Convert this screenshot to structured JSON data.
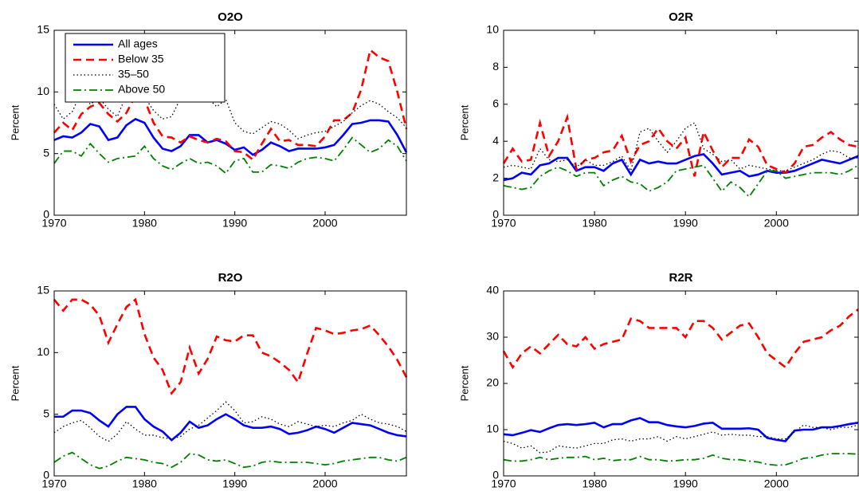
{
  "chart_data": [
    {
      "type": "line",
      "title": "O2O",
      "ylabel": "Percent",
      "legend": "upper left",
      "x": [
        1970,
        1971,
        1972,
        1973,
        1974,
        1975,
        1976,
        1977,
        1978,
        1979,
        1980,
        1981,
        1982,
        1983,
        1984,
        1985,
        1986,
        1987,
        1988,
        1989,
        1990,
        1991,
        1992,
        1993,
        1994,
        1995,
        1996,
        1997,
        1998,
        1999,
        2000,
        2001,
        2002,
        2003,
        2004,
        2005,
        2006,
        2007,
        2008,
        2009
      ],
      "xlim": [
        1970,
        2009
      ],
      "xticks": [
        1970,
        1980,
        1990,
        2000
      ],
      "ylim": [
        0,
        15
      ],
      "yticks": [
        0,
        5,
        10,
        15
      ],
      "series": [
        {
          "name": "All ages",
          "color": "#0000ff",
          "linestyle": "solid",
          "values": [
            6.1,
            6.4,
            6.3,
            6.7,
            7.4,
            7.2,
            6.1,
            6.3,
            7.3,
            7.8,
            7.5,
            6.3,
            5.4,
            5.2,
            5.6,
            6.5,
            6.5,
            5.9,
            6.1,
            5.8,
            5.3,
            5.5,
            4.9,
            5.3,
            5.9,
            5.6,
            5.2,
            5.4,
            5.4,
            5.4,
            5.5,
            5.7,
            6.5,
            7.4,
            7.5,
            7.7,
            7.7,
            7.6,
            6.5,
            5.1
          ]
        },
        {
          "name": "Below 35",
          "color": "#ff0000",
          "linestyle": "dashed",
          "values": [
            6.7,
            7.5,
            6.9,
            8.2,
            8.8,
            9.1,
            8.2,
            7.6,
            8.3,
            9.7,
            9.4,
            7.5,
            6.4,
            6.3,
            5.9,
            6.4,
            6.1,
            5.9,
            6.2,
            6.0,
            5.2,
            5.1,
            4.5,
            5.8,
            7.0,
            6.0,
            6.1,
            5.7,
            5.7,
            5.6,
            6.4,
            7.7,
            7.7,
            8.3,
            10.2,
            13.4,
            12.8,
            12.5,
            10.0,
            7.0
          ]
        },
        {
          "name": "35–50",
          "color": "#000000",
          "linestyle": "dotted",
          "values": [
            9.0,
            7.8,
            8.4,
            10.0,
            9.0,
            9.5,
            8.6,
            8.0,
            9.8,
            10.5,
            9.6,
            8.5,
            7.8,
            8.0,
            9.5,
            9.8,
            9.7,
            9.5,
            8.8,
            9.4,
            7.5,
            6.8,
            6.6,
            7.1,
            7.6,
            7.4,
            6.9,
            6.2,
            6.5,
            6.7,
            6.8,
            7.2,
            7.6,
            8.3,
            8.9,
            9.3,
            9.0,
            8.4,
            7.9,
            7.1
          ]
        },
        {
          "name": "Above 50",
          "color": "#008000",
          "linestyle": "dashdot",
          "values": [
            4.2,
            5.2,
            5.2,
            4.8,
            5.8,
            5.0,
            4.3,
            4.6,
            4.7,
            4.8,
            5.6,
            4.6,
            4.0,
            3.7,
            4.2,
            4.6,
            4.2,
            4.3,
            4.0,
            3.4,
            4.4,
            4.6,
            3.5,
            3.5,
            4.1,
            4.0,
            3.8,
            4.3,
            4.6,
            4.7,
            4.6,
            4.4,
            5.3,
            6.3,
            5.7,
            5.1,
            5.4,
            6.1,
            5.6,
            4.4
          ]
        }
      ]
    },
    {
      "type": "line",
      "title": "O2R",
      "ylabel": "Percent",
      "x": [
        1970,
        1971,
        1972,
        1973,
        1974,
        1975,
        1976,
        1977,
        1978,
        1979,
        1980,
        1981,
        1982,
        1983,
        1984,
        1985,
        1986,
        1987,
        1988,
        1989,
        1990,
        1991,
        1992,
        1993,
        1994,
        1995,
        1996,
        1997,
        1998,
        1999,
        2000,
        2001,
        2002,
        2003,
        2004,
        2005,
        2006,
        2007,
        2008,
        2009
      ],
      "xlim": [
        1970,
        2009
      ],
      "xticks": [
        1970,
        1980,
        1990,
        2000
      ],
      "ylim": [
        0,
        10
      ],
      "yticks": [
        0,
        2,
        4,
        6,
        8,
        10
      ],
      "series": [
        {
          "name": "All ages",
          "color": "#0000ff",
          "linestyle": "solid",
          "values": [
            1.9,
            2.0,
            2.3,
            2.2,
            2.7,
            2.8,
            3.1,
            3.1,
            2.4,
            2.6,
            2.6,
            2.4,
            2.8,
            3.0,
            2.2,
            3.0,
            2.8,
            2.9,
            2.8,
            2.8,
            3.0,
            3.2,
            3.3,
            2.8,
            2.2,
            2.3,
            2.4,
            2.1,
            2.2,
            2.4,
            2.3,
            2.3,
            2.4,
            2.6,
            2.8,
            3.0,
            2.9,
            2.8,
            3.0,
            3.2
          ]
        },
        {
          "name": "Below 35",
          "color": "#ff0000",
          "linestyle": "dashed",
          "values": [
            2.8,
            3.6,
            2.9,
            3.0,
            5.0,
            3.2,
            4.0,
            5.3,
            2.5,
            3.0,
            3.1,
            3.4,
            3.5,
            4.3,
            2.9,
            3.8,
            4.0,
            4.7,
            4.0,
            3.6,
            4.2,
            2.1,
            4.5,
            3.5,
            2.6,
            3.1,
            3.1,
            4.1,
            3.7,
            2.7,
            2.5,
            2.3,
            2.8,
            3.7,
            3.8,
            4.2,
            4.5,
            4.1,
            3.8,
            3.7
          ]
        },
        {
          "name": "35–50",
          "color": "#000000",
          "linestyle": "dotted",
          "values": [
            2.6,
            2.7,
            2.6,
            2.5,
            3.6,
            3.0,
            2.9,
            3.0,
            2.6,
            3.0,
            2.7,
            2.7,
            2.9,
            3.2,
            2.4,
            4.5,
            4.7,
            4.0,
            3.4,
            4.0,
            4.7,
            5.0,
            3.6,
            3.3,
            2.9,
            3.0,
            2.5,
            2.7,
            2.6,
            2.5,
            2.4,
            2.4,
            2.6,
            2.8,
            3.0,
            3.3,
            3.5,
            3.4,
            3.1,
            3.1
          ]
        },
        {
          "name": "Above 50",
          "color": "#008000",
          "linestyle": "dashdot",
          "values": [
            1.6,
            1.5,
            1.4,
            1.5,
            2.1,
            2.4,
            2.6,
            2.4,
            2.1,
            2.3,
            2.3,
            1.6,
            1.9,
            2.1,
            1.8,
            1.7,
            1.3,
            1.5,
            1.8,
            2.4,
            2.5,
            2.6,
            2.7,
            2.0,
            1.3,
            1.8,
            1.5,
            1.0,
            1.7,
            2.4,
            2.4,
            2.0,
            2.1,
            2.2,
            2.3,
            2.3,
            2.3,
            2.2,
            2.4,
            2.7
          ]
        }
      ]
    },
    {
      "type": "line",
      "title": "R2O",
      "ylabel": "Percent",
      "x": [
        1970,
        1971,
        1972,
        1973,
        1974,
        1975,
        1976,
        1977,
        1978,
        1979,
        1980,
        1981,
        1982,
        1983,
        1984,
        1985,
        1986,
        1987,
        1988,
        1989,
        1990,
        1991,
        1992,
        1993,
        1994,
        1995,
        1996,
        1997,
        1998,
        1999,
        2000,
        2001,
        2002,
        2003,
        2004,
        2005,
        2006,
        2007,
        2008,
        2009
      ],
      "xlim": [
        1970,
        2009
      ],
      "xticks": [
        1970,
        1980,
        1990,
        2000
      ],
      "ylim": [
        0,
        15
      ],
      "yticks": [
        0,
        5,
        10,
        15
      ],
      "series": [
        {
          "name": "All ages",
          "color": "#0000ff",
          "linestyle": "solid",
          "values": [
            4.8,
            4.8,
            5.3,
            5.3,
            5.1,
            4.5,
            4.0,
            5.0,
            5.6,
            5.6,
            4.6,
            4.0,
            3.6,
            2.9,
            3.5,
            4.4,
            3.9,
            4.1,
            4.6,
            5.0,
            4.6,
            4.1,
            3.9,
            3.9,
            4.0,
            3.8,
            3.4,
            3.5,
            3.7,
            4.0,
            3.8,
            3.5,
            3.9,
            4.3,
            4.2,
            4.1,
            3.8,
            3.5,
            3.3,
            3.2
          ]
        },
        {
          "name": "Below 35",
          "color": "#ff0000",
          "linestyle": "dashed",
          "values": [
            14.3,
            13.4,
            14.3,
            14.3,
            13.9,
            13.0,
            10.8,
            12.3,
            13.7,
            14.3,
            11.5,
            9.6,
            8.6,
            6.7,
            7.6,
            10.4,
            8.3,
            9.5,
            11.3,
            11.0,
            10.9,
            11.4,
            11.4,
            10.0,
            9.7,
            9.2,
            8.6,
            7.6,
            9.9,
            12.0,
            11.8,
            11.5,
            11.6,
            11.8,
            11.9,
            12.2,
            11.4,
            10.5,
            9.4,
            8.0
          ]
        },
        {
          "name": "35–50",
          "color": "#000000",
          "linestyle": "dotted",
          "values": [
            3.5,
            4.0,
            4.3,
            4.5,
            3.9,
            3.2,
            2.8,
            3.4,
            4.4,
            3.8,
            3.3,
            3.3,
            3.1,
            3.0,
            3.2,
            3.8,
            4.1,
            4.7,
            5.3,
            6.0,
            5.3,
            4.3,
            4.4,
            4.8,
            4.6,
            4.2,
            4.0,
            4.4,
            4.2,
            4.0,
            4.1,
            4.0,
            4.3,
            4.5,
            5.0,
            4.6,
            4.3,
            4.2,
            4.0,
            3.6
          ]
        },
        {
          "name": "Above 50",
          "color": "#008000",
          "linestyle": "dashdot",
          "values": [
            1.1,
            1.6,
            1.9,
            1.4,
            0.9,
            0.6,
            0.8,
            1.2,
            1.5,
            1.4,
            1.3,
            1.1,
            1.0,
            0.7,
            1.1,
            1.8,
            1.7,
            1.3,
            1.2,
            1.3,
            1.0,
            0.7,
            0.8,
            1.1,
            1.2,
            1.1,
            1.1,
            1.1,
            1.1,
            1.0,
            0.9,
            1.0,
            1.2,
            1.3,
            1.4,
            1.5,
            1.5,
            1.3,
            1.2,
            1.5
          ]
        }
      ]
    },
    {
      "type": "line",
      "title": "R2R",
      "ylabel": "Percent",
      "x": [
        1970,
        1971,
        1972,
        1973,
        1974,
        1975,
        1976,
        1977,
        1978,
        1979,
        1980,
        1981,
        1982,
        1983,
        1984,
        1985,
        1986,
        1987,
        1988,
        1989,
        1990,
        1991,
        1992,
        1993,
        1994,
        1995,
        1996,
        1997,
        1998,
        1999,
        2000,
        2001,
        2002,
        2003,
        2004,
        2005,
        2006,
        2007,
        2008,
        2009
      ],
      "xlim": [
        1970,
        2009
      ],
      "xticks": [
        1970,
        1980,
        1990,
        2000
      ],
      "ylim": [
        0,
        40
      ],
      "yticks": [
        0,
        10,
        20,
        30,
        40
      ],
      "series": [
        {
          "name": "All ages",
          "color": "#0000ff",
          "linestyle": "solid",
          "values": [
            9.0,
            8.8,
            9.3,
            9.9,
            9.5,
            10.3,
            11.0,
            11.2,
            11.0,
            11.2,
            11.5,
            10.5,
            11.2,
            11.2,
            12.0,
            12.5,
            11.6,
            11.6,
            11.0,
            10.7,
            10.5,
            10.8,
            11.3,
            11.5,
            10.2,
            10.2,
            10.2,
            10.3,
            10.0,
            8.2,
            7.8,
            7.5,
            9.8,
            10.0,
            10.0,
            10.5,
            10.5,
            10.8,
            11.2,
            11.5
          ]
        },
        {
          "name": "Below 35",
          "color": "#ff0000",
          "linestyle": "dashed",
          "values": [
            27.0,
            23.5,
            26.5,
            28.0,
            26.5,
            28.5,
            30.5,
            28.5,
            28.0,
            30.0,
            27.5,
            28.5,
            29.0,
            29.5,
            34.0,
            33.5,
            32.0,
            32.0,
            32.0,
            32.0,
            30.0,
            33.5,
            33.5,
            32.0,
            29.5,
            31.0,
            32.5,
            33.0,
            30.0,
            26.5,
            25.0,
            23.5,
            26.5,
            29.0,
            29.5,
            30.0,
            31.5,
            32.5,
            34.5,
            36.0
          ]
        },
        {
          "name": "35–50",
          "color": "#000000",
          "linestyle": "dotted",
          "values": [
            7.5,
            7.0,
            6.0,
            6.5,
            5.0,
            5.2,
            6.5,
            6.2,
            6.0,
            6.5,
            7.0,
            7.0,
            7.8,
            8.0,
            7.5,
            8.0,
            8.0,
            8.5,
            7.5,
            8.5,
            8.0,
            8.5,
            9.0,
            9.5,
            8.8,
            9.0,
            8.8,
            8.8,
            8.5,
            8.5,
            8.0,
            8.0,
            9.5,
            11.0,
            10.5,
            10.5,
            10.0,
            10.5,
            10.5,
            11.0
          ]
        },
        {
          "name": "Above 50",
          "color": "#008000",
          "linestyle": "dashdot",
          "values": [
            3.5,
            3.2,
            3.2,
            3.5,
            4.0,
            3.5,
            3.8,
            4.0,
            4.0,
            4.2,
            3.5,
            3.8,
            3.3,
            3.5,
            3.5,
            4.2,
            3.5,
            3.5,
            3.2,
            3.3,
            3.5,
            3.5,
            3.8,
            4.5,
            3.8,
            3.5,
            3.5,
            3.2,
            3.0,
            2.5,
            2.3,
            2.4,
            3.0,
            3.8,
            4.0,
            4.5,
            4.8,
            4.8,
            4.8,
            4.7
          ]
        }
      ]
    }
  ]
}
